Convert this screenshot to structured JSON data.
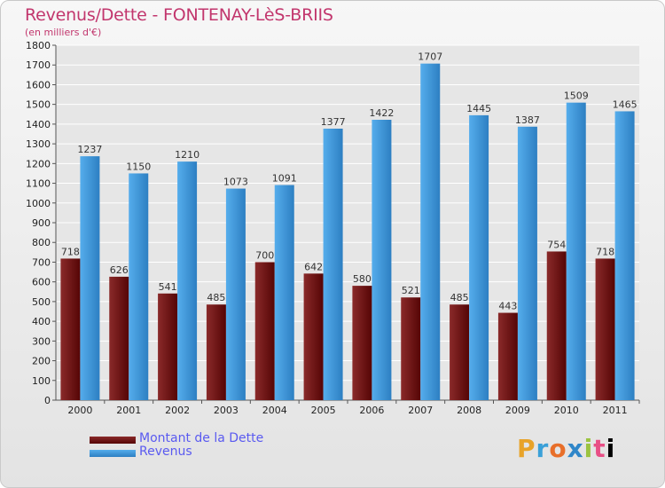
{
  "header": {
    "title": "Revenus/Dette - FONTENAY-LèS-BRIIS",
    "subtitle": "(en milliers d'€)"
  },
  "legend": {
    "items": [
      {
        "label": "Montant de la Dette",
        "color": "#7a1a1a"
      },
      {
        "label": "Revenus",
        "color": "#4aa3e6"
      }
    ]
  },
  "logo": {
    "text": "Proxiti"
  },
  "colors": {
    "debt_top": "#8a2a2a",
    "debt_bottom": "#550505",
    "rev_top": "#55adec",
    "rev_bottom": "#2d7fc2",
    "grid": "#ffffff",
    "title": "#c2366d"
  },
  "chart_data": {
    "type": "bar",
    "title": "Revenus/Dette - FONTENAY-LèS-BRIIS",
    "ylabel": "(en milliers d'€)",
    "xlabel": "",
    "categories": [
      "2000",
      "2001",
      "2002",
      "2003",
      "2004",
      "2005",
      "2006",
      "2007",
      "2008",
      "2009",
      "2010",
      "2011"
    ],
    "series": [
      {
        "name": "Montant de la Dette",
        "values": [
          718,
          626,
          541,
          485,
          700,
          642,
          580,
          521,
          485,
          443,
          754,
          718
        ]
      },
      {
        "name": "Revenus",
        "values": [
          1237,
          1150,
          1210,
          1073,
          1091,
          1377,
          1422,
          1707,
          1445,
          1387,
          1509,
          1465
        ]
      }
    ],
    "ylim": [
      0,
      1800
    ],
    "ytick_step": 100,
    "grid": true,
    "legend_position": "bottom-left"
  }
}
